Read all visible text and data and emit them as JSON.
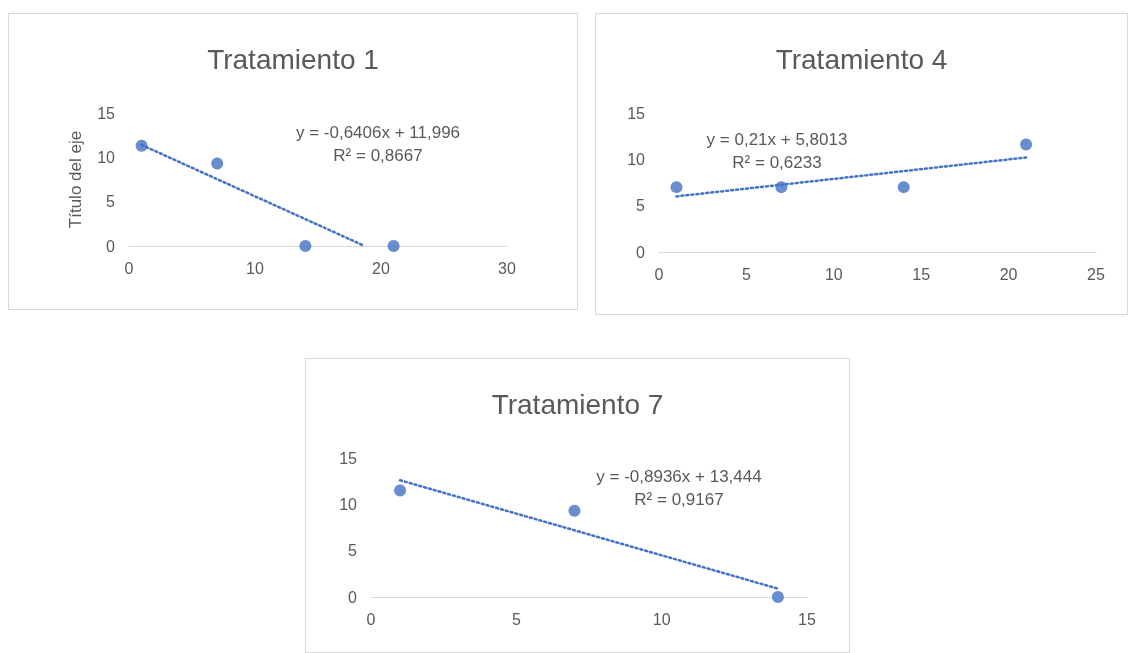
{
  "chart_data": [
    {
      "type": "scatter",
      "title": "Tratamiento 1",
      "ylabel": "Título del eje",
      "xlim": [
        0,
        30
      ],
      "xticks": [
        0,
        10,
        20,
        30
      ],
      "ylim": [
        0,
        15
      ],
      "yticks": [
        0,
        5,
        10,
        15
      ],
      "grid": false,
      "marker": "circle",
      "series": [
        {
          "color": "#4472c4",
          "x": [
            1,
            7,
            14,
            21
          ],
          "values": [
            11.3,
            9.3,
            0,
            0
          ]
        },
        {
          "type": "line",
          "color": "#4472c4",
          "line_style": "dotted",
          "marker": "none",
          "x": [
            1,
            18.7
          ],
          "values": [
            11.4,
            0
          ]
        }
      ],
      "annotations": [
        "y = -0,6406x + 11,996",
        "R² = 0,8667"
      ]
    },
    {
      "type": "scatter",
      "title": "Tratamiento 4",
      "xlim": [
        0,
        25
      ],
      "xticks": [
        0,
        5,
        10,
        15,
        20,
        25
      ],
      "ylim": [
        0,
        15
      ],
      "yticks": [
        0,
        5,
        10,
        15
      ],
      "grid": false,
      "marker": "circle",
      "series": [
        {
          "color": "#4472c4",
          "x": [
            1,
            7,
            14,
            21
          ],
          "values": [
            7,
            7,
            7,
            11.6
          ]
        },
        {
          "type": "line",
          "color": "#4472c4",
          "line_style": "dotted",
          "marker": "none",
          "x": [
            1,
            21
          ],
          "values": [
            6.0,
            10.2
          ]
        }
      ],
      "annotations": [
        "y = 0,21x + 5,8013",
        "R² = 0,6233"
      ]
    },
    {
      "type": "scatter",
      "title": "Tratamiento 7",
      "xlim": [
        0,
        15
      ],
      "xticks": [
        0,
        5,
        10,
        15
      ],
      "ylim": [
        0,
        15
      ],
      "yticks": [
        0,
        5,
        10,
        15
      ],
      "grid": false,
      "marker": "circle",
      "series": [
        {
          "color": "#4472c4",
          "x": [
            1,
            7,
            14
          ],
          "values": [
            11.5,
            9.3,
            0
          ]
        },
        {
          "type": "line",
          "color": "#4472c4",
          "line_style": "dotted",
          "marker": "none",
          "x": [
            1,
            14
          ],
          "values": [
            12.6,
            0.9
          ]
        }
      ],
      "annotations": [
        "y = -0,8936x + 13,444",
        "R² = 0,9167"
      ]
    }
  ]
}
